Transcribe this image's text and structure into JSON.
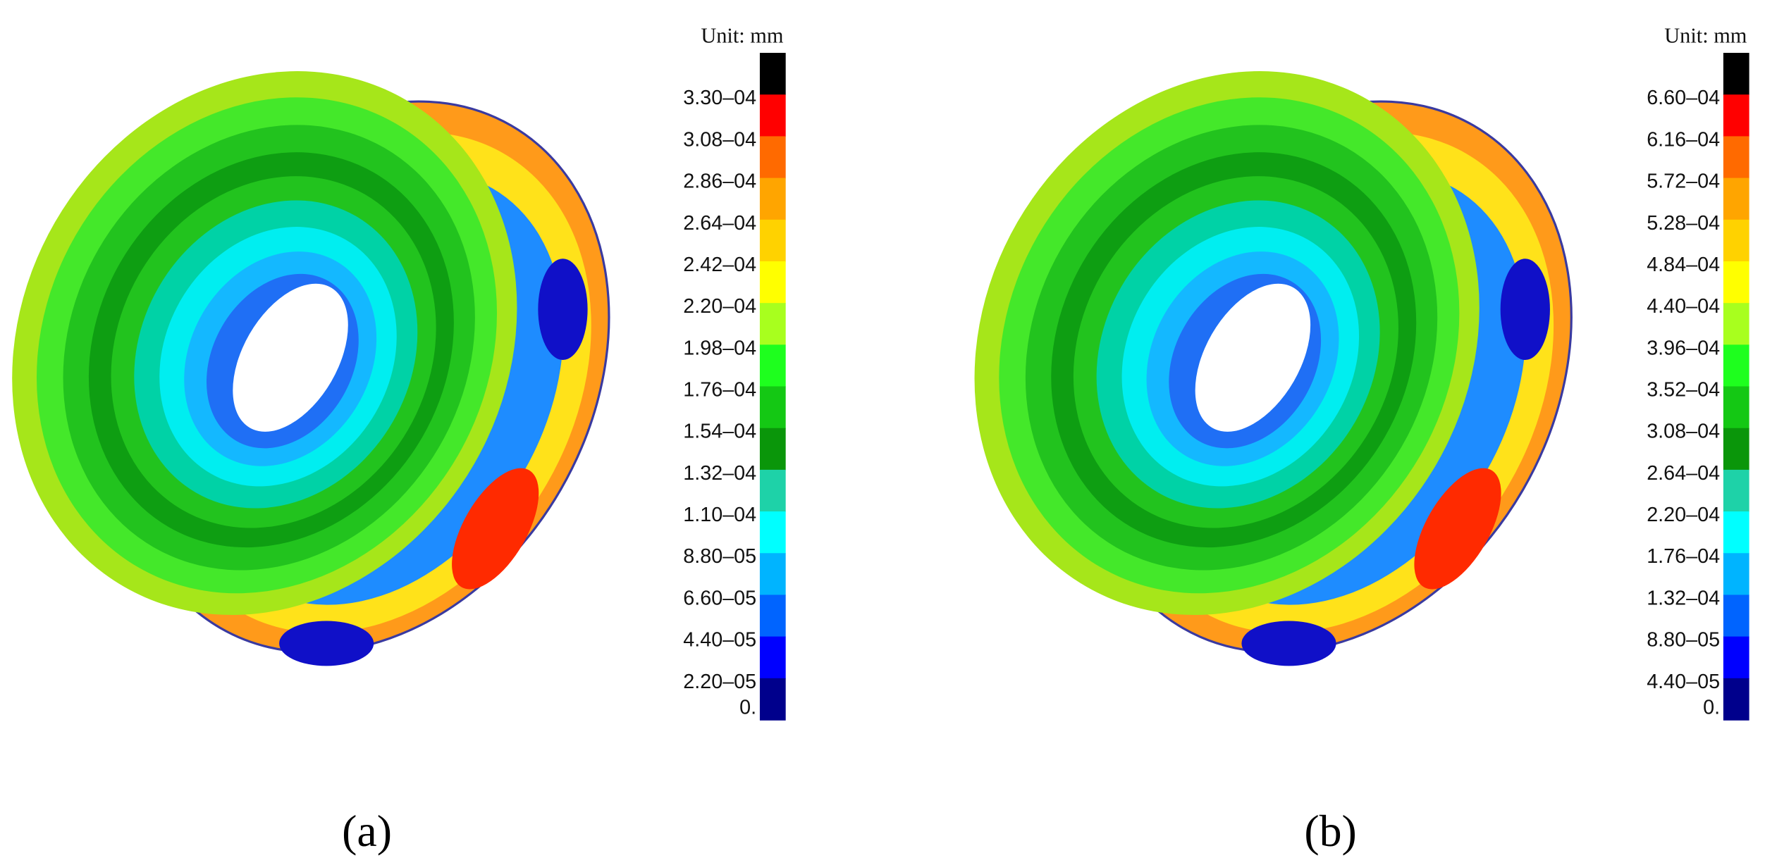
{
  "panels": [
    {
      "label": "(a)",
      "unit": "Unit: mm",
      "legend_labels": [
        "3.30–04",
        "3.08–04",
        "2.86–04",
        "2.64–04",
        "2.42–04",
        "2.20–04",
        "1.98–04",
        "1.76–04",
        "1.54–04",
        "1.32–04",
        "1.10–04",
        "8.80–05",
        "6.60–05",
        "4.40–05",
        "2.20–05",
        "0."
      ],
      "legend_colors": [
        "#000000",
        "#ff0000",
        "#ff6a00",
        "#ffa500",
        "#ffd200",
        "#ffff00",
        "#a8ff1e",
        "#1eff1e",
        "#14c814",
        "#0a960a",
        "#1ed2a8",
        "#00ffff",
        "#00b4ff",
        "#0064ff",
        "#0000ff",
        "#00008c"
      ]
    },
    {
      "label": "(b)",
      "unit": "Unit: mm",
      "legend_labels": [
        "6.60–04",
        "6.16–04",
        "5.72–04",
        "5.28–04",
        "4.84–04",
        "4.40–04",
        "3.96–04",
        "3.52–04",
        "3.08–04",
        "2.64–04",
        "2.20–04",
        "1.76–04",
        "1.32–04",
        "8.80–05",
        "4.40–05",
        "0."
      ],
      "legend_colors": [
        "#000000",
        "#ff0000",
        "#ff6a00",
        "#ffa500",
        "#ffd200",
        "#ffff00",
        "#a8ff1e",
        "#1eff1e",
        "#14c814",
        "#0a960a",
        "#1ed2a8",
        "#00ffff",
        "#00b4ff",
        "#0064ff",
        "#0000ff",
        "#00008c"
      ]
    }
  ]
}
